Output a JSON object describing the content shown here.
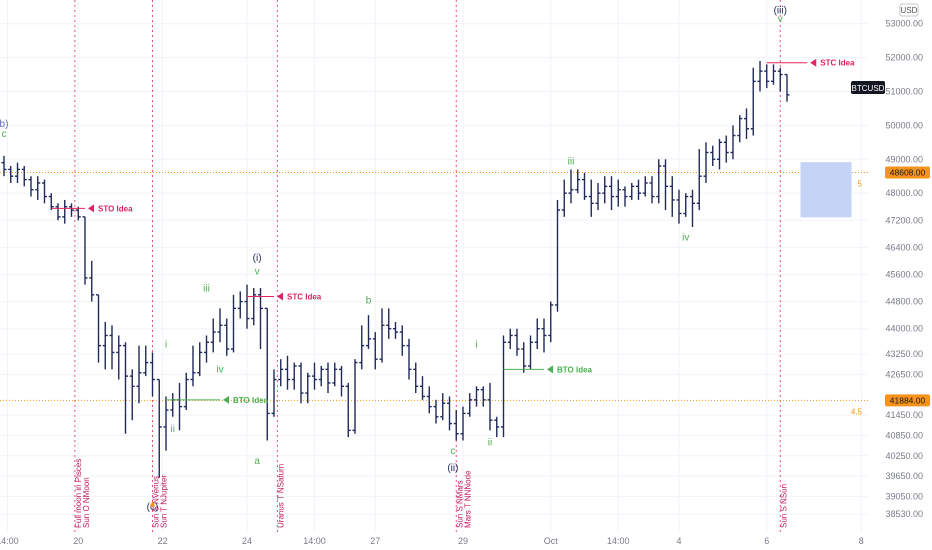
{
  "chart_data": {
    "type": "candlestick",
    "symbol": "BTCUSD",
    "currency": "USD",
    "ylim": [
      38000,
      53700
    ],
    "y_ticks": [
      53000,
      52000,
      51000,
      50000,
      49000,
      48000,
      47200,
      46400,
      45600,
      44800,
      44000,
      43250,
      42650,
      41450,
      40850,
      40250,
      39650,
      39050,
      38530
    ],
    "x_ticks": [
      {
        "label": "14:00",
        "i": 0.5
      },
      {
        "label": "20",
        "i": 11
      },
      {
        "label": "22",
        "i": 23.5
      },
      {
        "label": "24",
        "i": 36
      },
      {
        "label": "14:00",
        "i": 46
      },
      {
        "label": "27",
        "i": 55
      },
      {
        "label": "29",
        "i": 68
      },
      {
        "label": "Oct",
        "i": 81
      },
      {
        "label": "14:00",
        "i": 91
      },
      {
        "label": "4",
        "i": 100
      },
      {
        "label": "6",
        "i": 113
      },
      {
        "label": "8",
        "i": 127
      }
    ],
    "candles": [
      [
        48900,
        48700,
        49100,
        48500
      ],
      [
        48700,
        48500,
        48800,
        48300
      ],
      [
        48500,
        48700,
        48900,
        48300
      ],
      [
        48700,
        48400,
        48800,
        48200
      ],
      [
        48400,
        48100,
        48500,
        47900
      ],
      [
        48100,
        48300,
        48500,
        47800
      ],
      [
        48300,
        47900,
        48400,
        47700
      ],
      [
        47900,
        47600,
        48000,
        47500
      ],
      [
        47600,
        47300,
        47700,
        47200
      ],
      [
        47300,
        47600,
        47800,
        47100
      ],
      [
        47600,
        47500,
        47700,
        47300
      ],
      [
        47500,
        47300,
        47600,
        47200
      ],
      [
        47300,
        45500,
        47300,
        45300
      ],
      [
        45500,
        45000,
        46000,
        44800
      ],
      [
        45000,
        43500,
        45000,
        43000
      ],
      [
        43500,
        43800,
        44200,
        42800
      ],
      [
        43800,
        43300,
        44100,
        42800
      ],
      [
        43300,
        43500,
        43800,
        42500
      ],
      [
        43500,
        42600,
        43600,
        40900
      ],
      [
        42600,
        42300,
        42800,
        41300
      ],
      [
        42300,
        42700,
        43500,
        41800
      ],
      [
        42700,
        43000,
        43500,
        42600
      ],
      [
        43000,
        42500,
        43300,
        42000
      ],
      [
        42500,
        41100,
        42500,
        39600
      ],
      [
        41100,
        41600,
        42000,
        40400
      ],
      [
        41600,
        41900,
        42100,
        41400
      ],
      [
        41900,
        41700,
        42400,
        41000
      ],
      [
        41700,
        42500,
        42700,
        41600
      ],
      [
        42500,
        42700,
        43500,
        42300
      ],
      [
        42700,
        43300,
        43600,
        42600
      ],
      [
        43300,
        43600,
        43800,
        43000
      ],
      [
        43600,
        43900,
        44300,
        43300
      ],
      [
        43900,
        44100,
        44600,
        43600
      ],
      [
        44100,
        43400,
        44300,
        43200
      ],
      [
        43400,
        44600,
        45000,
        43300
      ],
      [
        44600,
        44800,
        45100,
        44300
      ],
      [
        44800,
        44300,
        45300,
        44000
      ],
      [
        44300,
        45000,
        45200,
        44100
      ],
      [
        45000,
        44600,
        45200,
        43400
      ],
      [
        44600,
        41500,
        44600,
        40700
      ],
      [
        41500,
        42500,
        42800,
        41400
      ],
      [
        42500,
        42800,
        43100,
        42300
      ],
      [
        42800,
        42500,
        43200,
        42200
      ],
      [
        42500,
        42900,
        43000,
        42200
      ],
      [
        42900,
        42100,
        43000,
        41800
      ],
      [
        42100,
        42600,
        42700,
        41800
      ],
      [
        42600,
        42500,
        43000,
        42200
      ],
      [
        42500,
        42800,
        42900,
        42300
      ],
      [
        42800,
        42400,
        43000,
        42100
      ],
      [
        42400,
        42800,
        43000,
        42300
      ],
      [
        42800,
        42300,
        42900,
        42000
      ],
      [
        42300,
        41000,
        42400,
        40800
      ],
      [
        41000,
        43000,
        43100,
        40900
      ],
      [
        43000,
        43500,
        44100,
        42800
      ],
      [
        43500,
        43700,
        44400,
        43400
      ],
      [
        43700,
        43100,
        43900,
        42800
      ],
      [
        43100,
        44100,
        44600,
        43000
      ],
      [
        44100,
        44000,
        44600,
        43700
      ],
      [
        44000,
        43900,
        44200,
        43700
      ],
      [
        43900,
        43500,
        44100,
        43200
      ],
      [
        43500,
        42800,
        43700,
        42500
      ],
      [
        42800,
        42300,
        43000,
        42100
      ],
      [
        42300,
        42000,
        42600,
        41900
      ],
      [
        42000,
        41700,
        42300,
        41500
      ],
      [
        41700,
        41400,
        41900,
        41200
      ],
      [
        41400,
        41800,
        42100,
        41300
      ],
      [
        41800,
        41200,
        42000,
        41000
      ],
      [
        41200,
        40900,
        41600,
        40700
      ],
      [
        40900,
        41500,
        41700,
        40700
      ],
      [
        41500,
        41900,
        42100,
        41400
      ],
      [
        41900,
        42200,
        42300,
        41700
      ],
      [
        42200,
        41900,
        42300,
        41700
      ],
      [
        41900,
        41300,
        42400,
        41000
      ],
      [
        41300,
        41100,
        41400,
        40800
      ],
      [
        41100,
        43600,
        43800,
        40800
      ],
      [
        43600,
        43800,
        44000,
        43400
      ],
      [
        43800,
        43400,
        44000,
        43200
      ],
      [
        43400,
        42900,
        43600,
        42700
      ],
      [
        42900,
        43600,
        43800,
        42800
      ],
      [
        43600,
        44000,
        44300,
        43400
      ],
      [
        44000,
        43800,
        44300,
        43300
      ],
      [
        43800,
        44700,
        44800,
        43600
      ],
      [
        44700,
        47500,
        47800,
        44500
      ],
      [
        47500,
        48000,
        48400,
        47300
      ],
      [
        48000,
        48100,
        48700,
        47700
      ],
      [
        48100,
        48400,
        48700,
        48000
      ],
      [
        48400,
        47900,
        48600,
        47800
      ],
      [
        47900,
        47700,
        48400,
        47300
      ],
      [
        47700,
        48000,
        48300,
        47500
      ],
      [
        48000,
        48200,
        48500,
        47700
      ],
      [
        48200,
        47900,
        48500,
        47500
      ],
      [
        47900,
        48100,
        48400,
        47600
      ],
      [
        48100,
        47900,
        48200,
        47600
      ],
      [
        47900,
        48200,
        48300,
        47800
      ],
      [
        48200,
        48000,
        48400,
        47800
      ],
      [
        48000,
        48300,
        48500,
        47900
      ],
      [
        48300,
        47900,
        48500,
        47700
      ],
      [
        47900,
        48800,
        49000,
        47700
      ],
      [
        48800,
        48200,
        49000,
        47500
      ],
      [
        48200,
        47800,
        48500,
        47300
      ],
      [
        47800,
        47400,
        48100,
        47100
      ],
      [
        47400,
        47900,
        48000,
        47300
      ],
      [
        47900,
        47700,
        48100,
        47000
      ],
      [
        47700,
        48500,
        49300,
        47500
      ],
      [
        48500,
        49200,
        49500,
        48300
      ],
      [
        49200,
        49000,
        49400,
        48800
      ],
      [
        49000,
        49500,
        49600,
        48700
      ],
      [
        49500,
        49200,
        49700,
        48900
      ],
      [
        49200,
        49700,
        50000,
        49000
      ],
      [
        49700,
        50200,
        50300,
        49500
      ],
      [
        50200,
        49900,
        50500,
        49600
      ],
      [
        49900,
        51300,
        51700,
        49700
      ],
      [
        51300,
        51600,
        51900,
        51000
      ],
      [
        51600,
        51300,
        51800,
        51100
      ],
      [
        51300,
        51600,
        51800,
        51200
      ],
      [
        51600,
        51500,
        51700,
        51000
      ],
      [
        51500,
        50900,
        51500,
        50700
      ]
    ],
    "horizontal_lines": [
      {
        "price": 48608,
        "label": "48608.00",
        "color": "#f7931a",
        "side_label": "5"
      },
      {
        "price": 41884,
        "label": "41884.00",
        "color": "#f7931a",
        "side_label": "4.5"
      }
    ],
    "current_price_label": "BTCUSD",
    "ideas": [
      {
        "text": "STO Idea",
        "price": 47550,
        "color": "#e0245e",
        "i_start": 7,
        "i_end": 12,
        "side": "sell"
      },
      {
        "text": "STC Idea",
        "price": 44950,
        "color": "#e0245e",
        "i_start": 36,
        "i_end": 40,
        "side": "sell"
      },
      {
        "text": "BTO Idea",
        "price": 41900,
        "color": "#4caf50",
        "i_start": 24,
        "i_end": 32,
        "side": "buy"
      },
      {
        "text": "BTO Idea",
        "price": 42800,
        "color": "#4caf50",
        "i_start": 74,
        "i_end": 80,
        "side": "buy"
      },
      {
        "text": "STC Idea",
        "price": 51850,
        "color": "#e0245e",
        "i_start": 113,
        "i_end": 119,
        "side": "sell"
      }
    ],
    "wave_labels": [
      {
        "text": "b)",
        "i": 0,
        "price": 49950,
        "color": "#5b6bb0"
      },
      {
        "text": "c",
        "i": 0,
        "price": 49650,
        "color": "#4caf50"
      },
      {
        "text": "i",
        "i": 24,
        "price": 43450,
        "color": "#4caf50"
      },
      {
        "text": "ii",
        "i": 25,
        "price": 40950,
        "color": "#4caf50"
      },
      {
        "text": "iii",
        "i": 30,
        "price": 45100,
        "color": "#4caf50"
      },
      {
        "text": "iv",
        "i": 32,
        "price": 42700,
        "color": "#4caf50"
      },
      {
        "text": "(i)",
        "i": 37.5,
        "price": 46000,
        "color": "#1f2a5a"
      },
      {
        "text": "v",
        "i": 37.5,
        "price": 45600,
        "color": "#4caf50"
      },
      {
        "text": "a",
        "i": 37.5,
        "price": 40000,
        "color": "#4caf50"
      },
      {
        "text": "b",
        "i": 54,
        "price": 44750,
        "color": "#4caf50"
      },
      {
        "text": "c",
        "i": 66.5,
        "price": 40300,
        "color": "#4caf50"
      },
      {
        "text": "(ii)",
        "i": 66.5,
        "price": 39800,
        "color": "#1f2a5a"
      },
      {
        "text": "i",
        "i": 70,
        "price": 43450,
        "color": "#4caf50"
      },
      {
        "text": "ii",
        "i": 72,
        "price": 40550,
        "color": "#4caf50"
      },
      {
        "text": "iii",
        "i": 84,
        "price": 48850,
        "color": "#4caf50"
      },
      {
        "text": "iv",
        "i": 101,
        "price": 46600,
        "color": "#4caf50"
      },
      {
        "text": "(iii)",
        "i": 115,
        "price": 53300,
        "color": "#1f2a5a"
      },
      {
        "text": "v",
        "i": 115,
        "price": 53050,
        "color": "#4caf50"
      },
      {
        "text": "(c)",
        "i": 22,
        "price": 38650,
        "color": "#1f2a5a"
      }
    ],
    "events": [
      {
        "i": 10.5,
        "lines": [
          "Full moon in Pisces",
          "Sun O NMoon"
        ]
      },
      {
        "i": 22,
        "lines": [
          "Sun S NVenus",
          "Sun T NJupiter"
        ]
      },
      {
        "i": 40.5,
        "lines": [
          "Uranus T NSaturn"
        ]
      },
      {
        "i": 67,
        "lines": [
          "Sun S NMars",
          "Mars T NNNode"
        ]
      },
      {
        "i": 115,
        "lines": [
          "Sun S NSun"
        ]
      }
    ],
    "target_box": {
      "price_top": 48900,
      "price_bottom": 47300
    }
  }
}
